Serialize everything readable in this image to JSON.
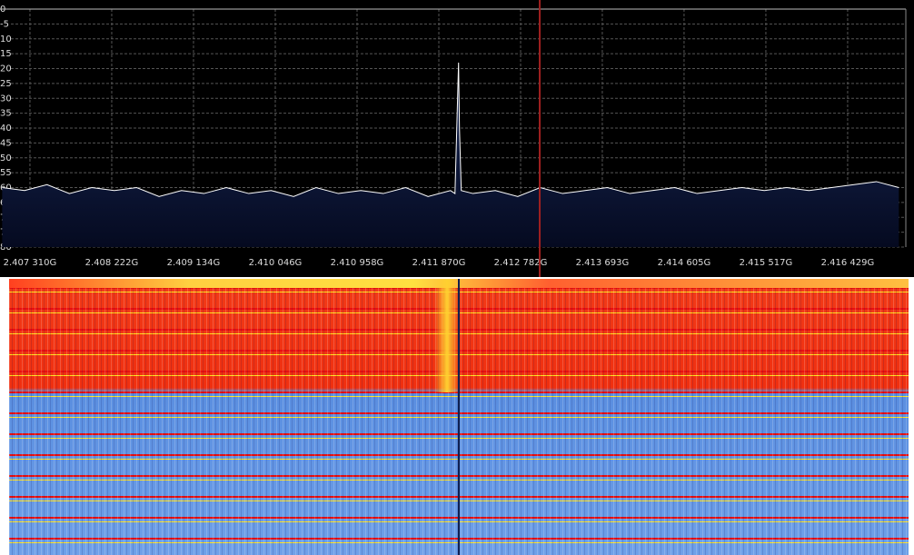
{
  "chart_data": {
    "type": "line",
    "x": [
      2407.0,
      2407.25,
      2407.5,
      2407.75,
      2408.0,
      2408.25,
      2408.5,
      2408.75,
      2409.0,
      2409.25,
      2409.5,
      2409.75,
      2410.0,
      2410.25,
      2410.5,
      2410.75,
      2411.0,
      2411.25,
      2411.5,
      2411.75,
      2412.0,
      2412.05,
      2412.09,
      2412.1,
      2412.12,
      2412.25,
      2412.5,
      2412.75,
      2413.0,
      2413.25,
      2413.5,
      2413.75,
      2414.0,
      2414.25,
      2414.5,
      2414.75,
      2415.0,
      2415.25,
      2415.5,
      2415.75,
      2416.0,
      2416.25,
      2416.5,
      2416.75,
      2417.0
    ],
    "series": [
      {
        "color": "#ffffff",
        "values": [
          -60,
          -61,
          -59,
          -62,
          -60,
          -61,
          -60,
          -63,
          -61,
          -62,
          -60,
          -62,
          -61,
          -63,
          -60,
          -62,
          -61,
          -62,
          -60,
          -63,
          -61,
          -62,
          -18,
          -40,
          -61,
          -62,
          -61,
          -63,
          -60,
          -62,
          -61,
          -60,
          -62,
          -61,
          -60,
          -62,
          -61,
          -60,
          -61,
          -60,
          -61,
          -60,
          -59,
          -58,
          -60
        ]
      }
    ],
    "xlim": [
      2406.976,
      2417.078
    ],
    "ylim": [
      -80,
      0
    ],
    "xticks": [
      {
        "value": 2407.31,
        "label": "2.407 310G"
      },
      {
        "value": 2408.222,
        "label": "2.408 222G"
      },
      {
        "value": 2409.134,
        "label": "2.409 134G"
      },
      {
        "value": 2410.046,
        "label": "2.410 046G"
      },
      {
        "value": 2410.958,
        "label": "2.410 958G"
      },
      {
        "value": 2411.87,
        "label": "2.411 870G"
      },
      {
        "value": 2412.782,
        "label": "2.412 782G"
      },
      {
        "value": 2413.693,
        "label": "2.413 693G"
      },
      {
        "value": 2414.605,
        "label": "2.414 605G"
      },
      {
        "value": 2415.517,
        "label": "2.415 517G"
      },
      {
        "value": 2416.429,
        "label": "2.416 429G"
      }
    ],
    "yticks": [
      0,
      -5,
      {
        "value": -10,
        "label": "10"
      },
      {
        "value": -15,
        "label": "15"
      },
      {
        "value": -20,
        "label": "20"
      },
      {
        "value": -25,
        "label": "25"
      },
      {
        "value": -30,
        "label": "30"
      },
      {
        "value": -35,
        "label": "35"
      },
      {
        "value": -40,
        "label": "40"
      },
      {
        "value": -45,
        "label": "45"
      },
      {
        "value": -50,
        "label": "50"
      },
      {
        "value": -55,
        "label": "55"
      },
      {
        "value": -60,
        "label": "60"
      },
      {
        "value": -65,
        "label": "65"
      },
      {
        "value": -70,
        "label": "70"
      },
      {
        "value": -75,
        "label": "75"
      },
      {
        "value": -80,
        "label": "80"
      }
    ],
    "marker_x": 2412.995,
    "marker_color": "#a02020",
    "grid": true
  }
}
